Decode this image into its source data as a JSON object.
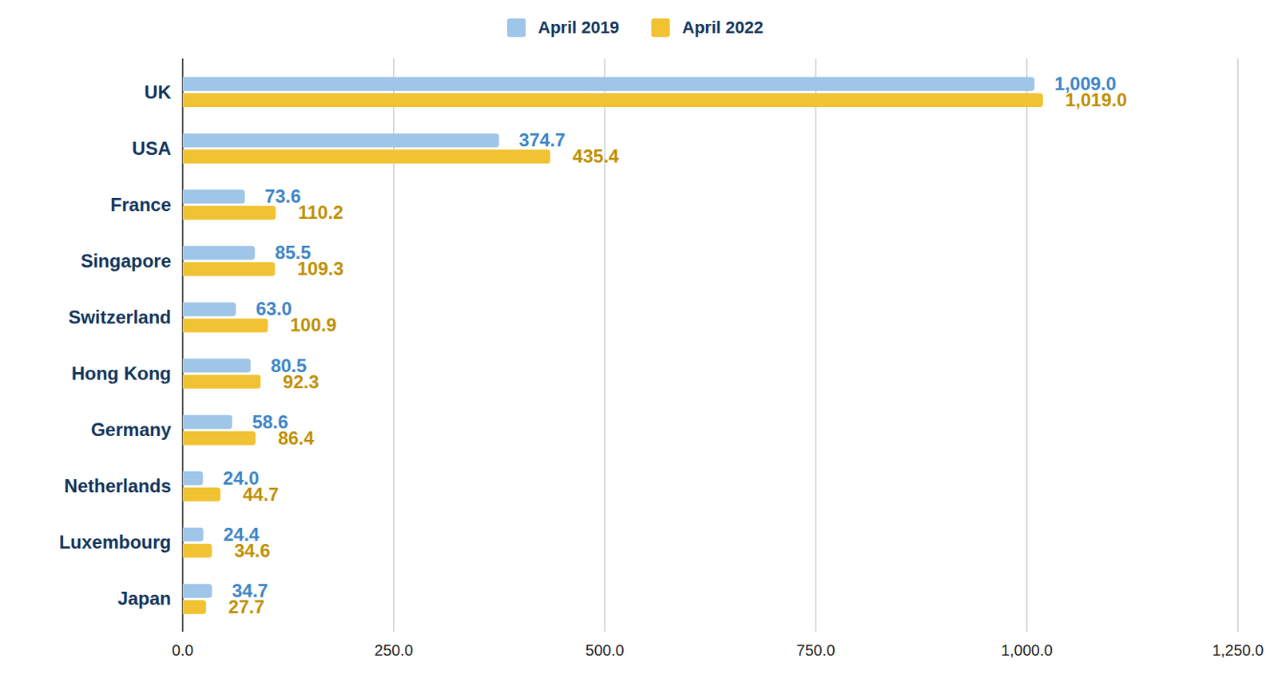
{
  "chart_data": {
    "type": "bar",
    "orientation": "horizontal",
    "categories": [
      "UK",
      "USA",
      "France",
      "Singapore",
      "Switzerland",
      "Hong Kong",
      "Germany",
      "Netherlands",
      "Luxembourg",
      "Japan"
    ],
    "series": [
      {
        "name": "April 2019",
        "color": "#9fc5e8",
        "values": [
          1009.0,
          374.7,
          73.6,
          85.5,
          63.0,
          80.5,
          58.6,
          24.0,
          24.4,
          34.7
        ],
        "value_labels": [
          "1,009.0",
          "374.7",
          "73.6",
          "85.5",
          "63.0",
          "80.5",
          "58.6",
          "24.0",
          "24.4",
          "34.7"
        ]
      },
      {
        "name": "April 2022",
        "color": "#f1c232",
        "values": [
          1019.0,
          435.4,
          110.2,
          109.3,
          100.9,
          92.3,
          86.4,
          44.7,
          34.6,
          27.7
        ],
        "value_labels": [
          "1,019.0",
          "435.4",
          "110.2",
          "109.3",
          "100.9",
          "92.3",
          "86.4",
          "44.7",
          "34.6",
          "27.7"
        ]
      }
    ],
    "xlim": [
      0,
      1250
    ],
    "xticks": [
      {
        "value": 0,
        "label": "0.0"
      },
      {
        "value": 250,
        "label": "250.0"
      },
      {
        "value": 500,
        "label": "500.0"
      },
      {
        "value": 750,
        "label": "750.0"
      },
      {
        "value": 1000,
        "label": "1,000.0"
      },
      {
        "value": 1250,
        "label": "1,250.0"
      }
    ],
    "grid": true,
    "legend": "top",
    "data_labels": true
  }
}
